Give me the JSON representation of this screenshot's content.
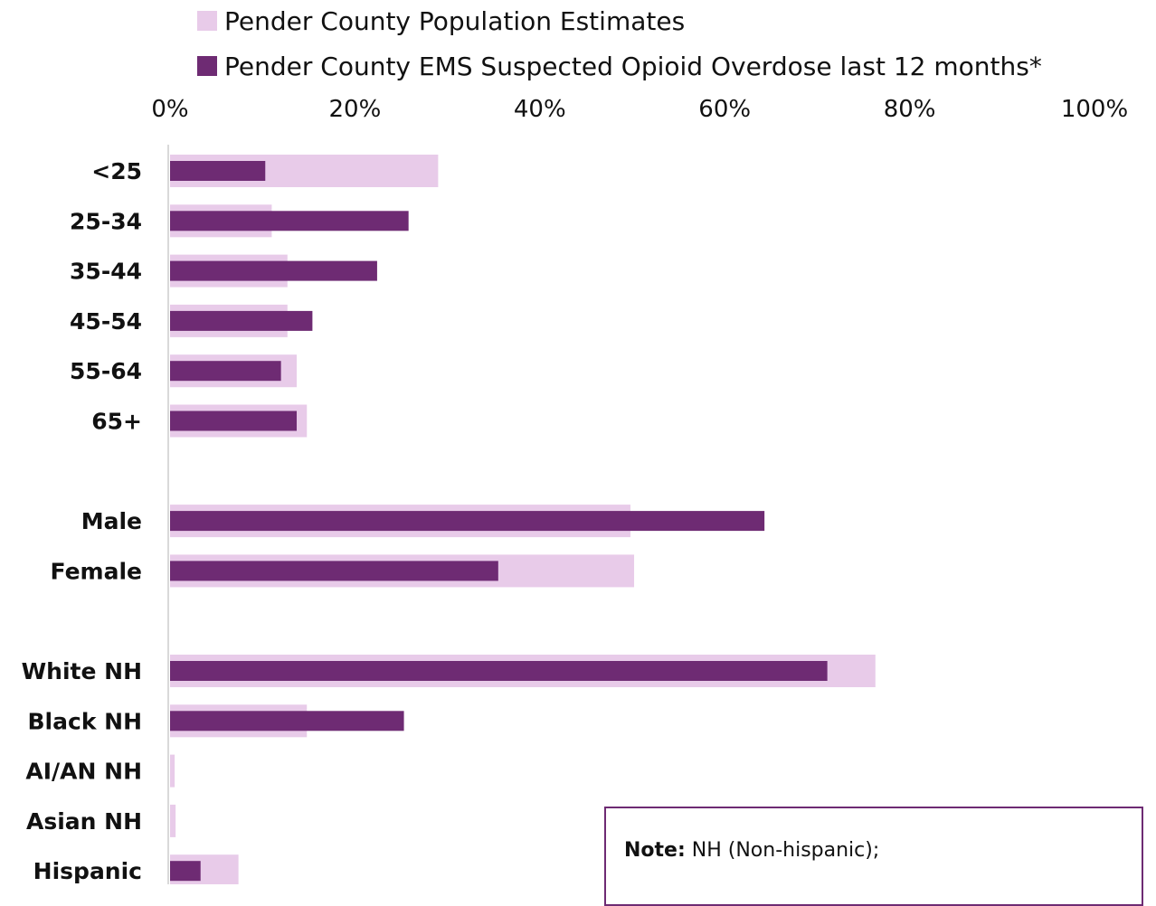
{
  "chart_data": {
    "type": "bar",
    "orientation": "horizontal",
    "title": "",
    "xlabel": "",
    "ylabel": "",
    "xlim": [
      0,
      100
    ],
    "x_ticks": [
      "0%",
      "20%",
      "40%",
      "60%",
      "80%",
      "100%"
    ],
    "categories": [
      "<25",
      "25-34",
      "35-44",
      "45-54",
      "55-64",
      "65+",
      "Male",
      "Female",
      "White NH",
      "Black NH",
      "AI/AN NH",
      "Asian NH",
      "Hispanic"
    ],
    "groups": [
      [
        "<25",
        "25-34",
        "35-44",
        "45-54",
        "55-64",
        "65+"
      ],
      [
        "Male",
        "Female"
      ],
      [
        "White NH",
        "Black NH",
        "AI/AN NH",
        "Asian NH",
        "Hispanic"
      ]
    ],
    "series": [
      {
        "name": "Pender County Population Estimates",
        "color": "#e8cbe9",
        "values": [
          29,
          11,
          12.7,
          12.7,
          13.7,
          14.8,
          49.8,
          50.2,
          76.3,
          14.8,
          0.5,
          0.6,
          7.4
        ]
      },
      {
        "name": "Pender County EMS Suspected Opioid Overdose last 12 months*",
        "color": "#6e2b73",
        "values": [
          10.3,
          25.8,
          22.4,
          15.4,
          12,
          13.7,
          64.3,
          35.5,
          71.1,
          25.3,
          0,
          0,
          3.3
        ]
      }
    ],
    "legend_position": "top-left",
    "grid": false
  },
  "note": {
    "label": "Note:",
    "text": "NH (Non-hispanic);"
  }
}
